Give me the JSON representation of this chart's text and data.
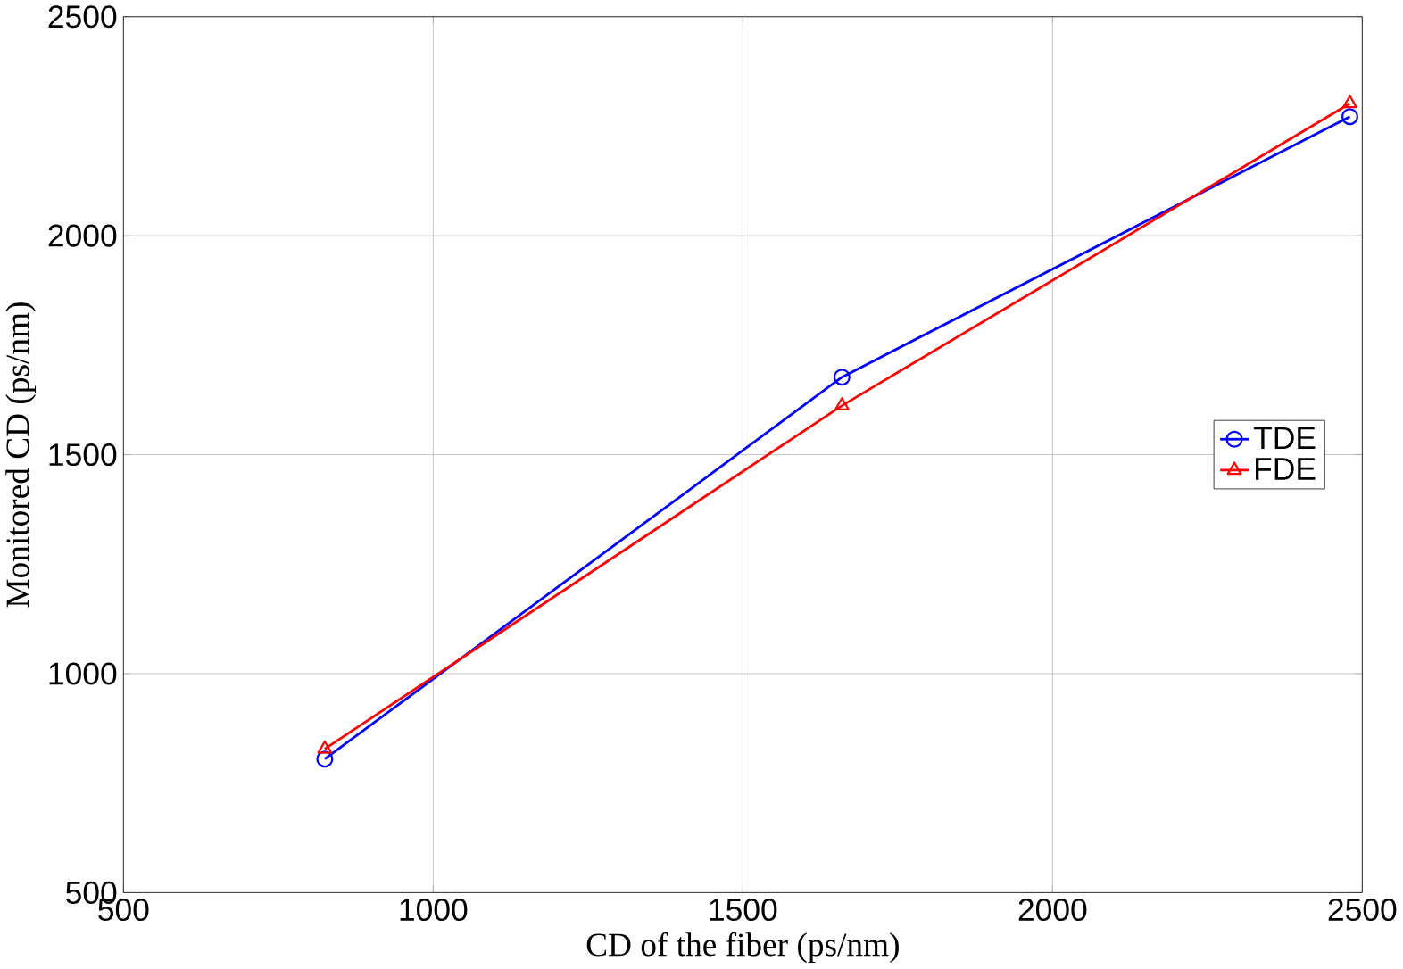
{
  "chart_data": {
    "type": "line",
    "xlabel": "CD of the fiber (ps/nm)",
    "ylabel": "Monitored  CD (ps/nm)",
    "x": [
      825,
      1660,
      2480
    ],
    "series": [
      {
        "name": "TDE",
        "color": "#0000ff",
        "marker": "circle",
        "values": [
          805,
          1677,
          2272
        ]
      },
      {
        "name": "FDE",
        "color": "#ff0000",
        "marker": "triangle",
        "values": [
          828,
          1612,
          2302
        ]
      }
    ],
    "xlim": [
      500,
      2500
    ],
    "ylim": [
      500,
      2500
    ],
    "xticks": [
      500,
      1000,
      1500,
      2000,
      2500
    ],
    "yticks": [
      500,
      1000,
      1500,
      2000,
      2500
    ],
    "grid": true,
    "legend": "right",
    "line_style": "solid"
  }
}
